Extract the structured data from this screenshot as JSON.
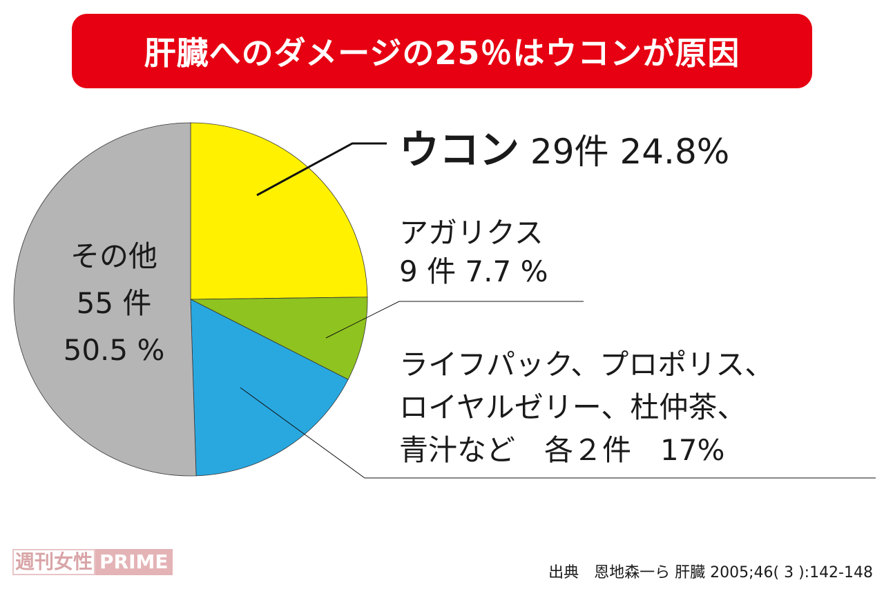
{
  "title": "肝臓へのダメージの25％はウコンが原因",
  "chart_data": {
    "type": "pie",
    "title": "肝臓へのダメージの25％はウコンが原因",
    "start": "top",
    "direction": "clockwise",
    "slices": [
      {
        "name": "ウコン",
        "count": "29件",
        "percent": 24.8,
        "color": "#fff100"
      },
      {
        "name": "アガリクス",
        "count": "9 件",
        "percent": 7.7,
        "color": "#8fc31f"
      },
      {
        "name": "ライフパック、プロポリス、ロイヤルゼリー、杜仲茶、青汁など",
        "count": "各２件",
        "percent": 17,
        "color": "#29a8e0"
      },
      {
        "name": "その他",
        "count": "55 件",
        "percent": 50.5,
        "color": "#b5b5b5"
      }
    ]
  },
  "labels": {
    "ukon_name": "ウコン",
    "ukon_value": "29件 24.8%",
    "agaricus_name": "アガリクス",
    "agaricus_value": "9 件 7.7 %",
    "others_line1": "ライフパック、プロポリス、",
    "others_line2": "ロイヤルゼリー、杜仲茶、",
    "others_line3": "青汁など　各２件　17%",
    "misc_name": "その他",
    "misc_count": "55 件",
    "misc_percent": "50.5 %"
  },
  "logo": {
    "part1": "週刊女性",
    "part2": "PRIME"
  },
  "source": "出典　恩地森一ら 肝臓 2005;46( 3 ):142-148"
}
